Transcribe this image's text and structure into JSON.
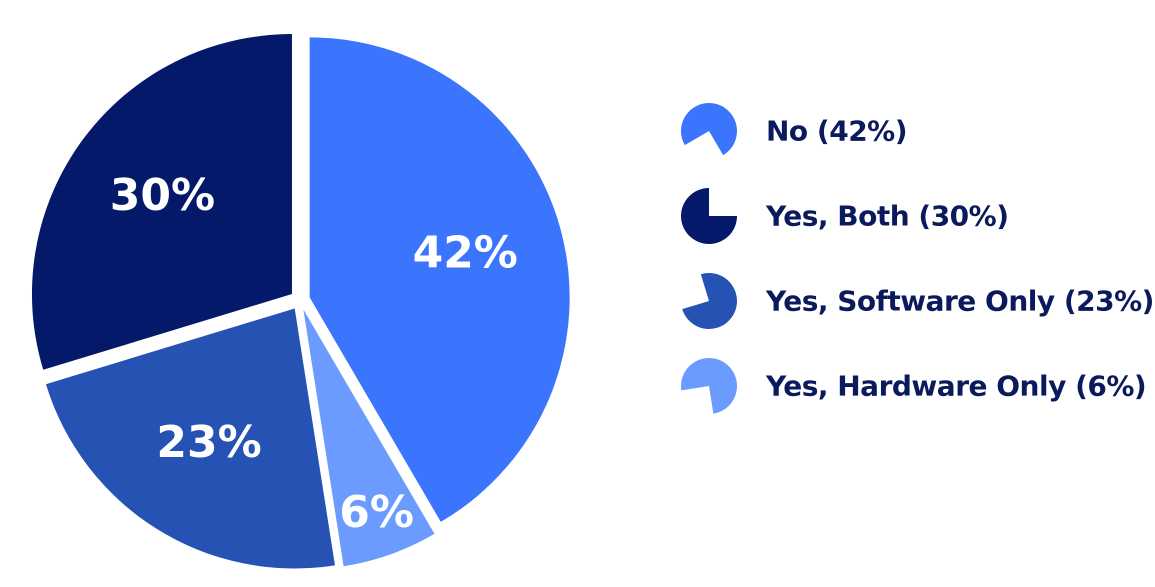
{
  "chart_data": {
    "type": "pie",
    "slices": [
      {
        "label": "No",
        "value": 42,
        "display": "42%",
        "legend": "No (42%)",
        "color": "#3b75fd"
      },
      {
        "label": "Yes, Hardware Only",
        "value": 6,
        "display": "6%",
        "legend": "Yes, Hardware Only (6%)",
        "color": "#6b9bff"
      },
      {
        "label": "Yes, Software Only",
        "value": 23,
        "display": "23%",
        "legend": "Yes, Software Only (23%)",
        "color": "#2652b4"
      },
      {
        "label": "Yes, Both",
        "value": 30,
        "display": "30%",
        "legend": "Yes, Both (30%)",
        "color": "#05196b"
      }
    ],
    "legend_order": [
      "No",
      "Yes, Both",
      "Yes, Software Only",
      "Yes, Hardware Only"
    ],
    "legend_placement": "right",
    "exploded": true
  }
}
